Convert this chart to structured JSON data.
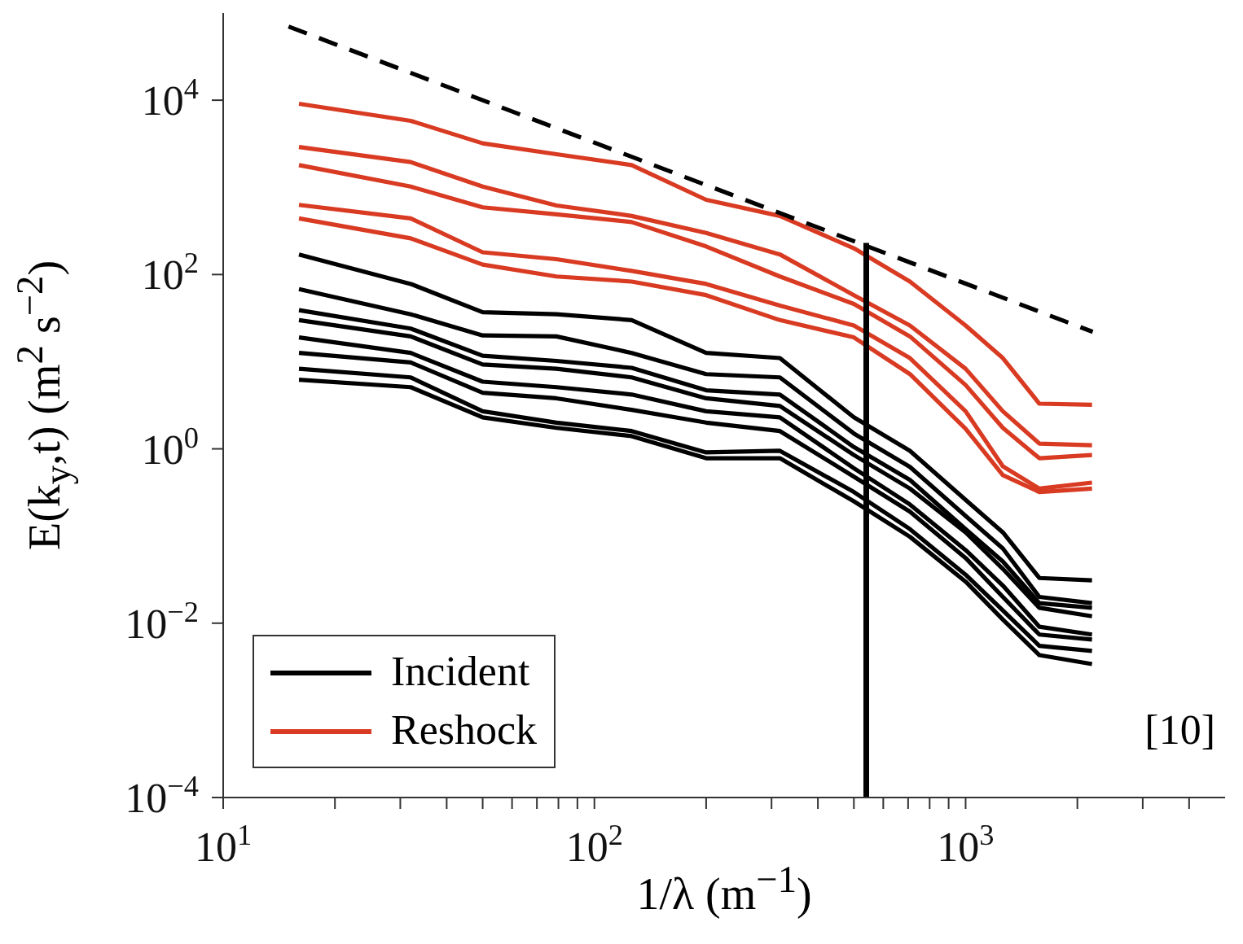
{
  "chart_data": {
    "type": "line",
    "log": "xy",
    "marker": "none",
    "legend": "bottom left",
    "xlabel": "1/λ (m$^{−1}$)",
    "ylabel": "E(k$_{y}$,t) (m$^{2}$ s$^{−2}$)",
    "xlim": [
      10,
      5000
    ],
    "ylim": [
      0.0001,
      100000
    ],
    "xticks": [
      {
        "value": 10,
        "label": "10$^{1}$"
      },
      {
        "value": 20,
        "label": null
      },
      {
        "value": 30,
        "label": null
      },
      {
        "value": 40,
        "label": null
      },
      {
        "value": 50,
        "label": null
      },
      {
        "value": 60,
        "label": null
      },
      {
        "value": 70,
        "label": null
      },
      {
        "value": 80,
        "label": null
      },
      {
        "value": 90,
        "label": null
      },
      {
        "value": 100,
        "label": "10$^{2}$"
      },
      {
        "value": 200,
        "label": null
      },
      {
        "value": 300,
        "label": null
      },
      {
        "value": 400,
        "label": null
      },
      {
        "value": 500,
        "label": null
      },
      {
        "value": 600,
        "label": null
      },
      {
        "value": 700,
        "label": null
      },
      {
        "value": 800,
        "label": null
      },
      {
        "value": 900,
        "label": null
      },
      {
        "value": 1000,
        "label": "10$^{3}$"
      },
      {
        "value": 2000,
        "label": null
      },
      {
        "value": 3000,
        "label": null
      },
      {
        "value": 4000,
        "label": null
      }
    ],
    "yticks": [
      {
        "value": 0.0001,
        "label": "10$^{−4}$"
      },
      {
        "value": 0.01,
        "label": "10$^{−2}$"
      },
      {
        "value": 1,
        "label": "10$^{0}$"
      },
      {
        "value": 100,
        "label": "10$^{2}$"
      },
      {
        "value": 10000,
        "label": "10$^{4}$"
      }
    ],
    "annotations": [
      "[10]"
    ],
    "series": [
      {
        "color": "#000000",
        "x": [
          16,
          32,
          50,
          79,
          126,
          200,
          316,
          500,
          708,
          1000,
          1260,
          1580,
          2190
        ],
        "values": [
          170,
          78,
          37,
          35,
          30,
          12.6,
          11,
          2.3,
          0.95,
          0.26,
          0.11,
          0.033,
          0.031
        ]
      },
      {
        "color": "#000000",
        "x": [
          16,
          32,
          50,
          79,
          126,
          200,
          316,
          500,
          708,
          1000,
          1260,
          1580,
          2190
        ],
        "values": [
          68,
          35,
          20,
          19.5,
          12.6,
          7.2,
          6.6,
          1.5,
          0.62,
          0.17,
          0.072,
          0.02,
          0.017
        ]
      },
      {
        "color": "#000000",
        "x": [
          16,
          32,
          50,
          79,
          126,
          200,
          316,
          500,
          708,
          1000,
          1260,
          1580,
          2190
        ],
        "values": [
          39,
          24,
          11.7,
          10.2,
          8.5,
          4.7,
          4.2,
          1.05,
          0.44,
          0.12,
          0.051,
          0.017,
          0.015
        ]
      },
      {
        "color": "#000000",
        "x": [
          16,
          32,
          50,
          79,
          126,
          200,
          316,
          500,
          708,
          1000,
          1260,
          1580,
          2190
        ],
        "values": [
          30,
          19.5,
          9.3,
          8.3,
          6.6,
          3.8,
          3.1,
          0.85,
          0.35,
          0.11,
          0.042,
          0.015,
          0.012
        ]
      },
      {
        "color": "#000000",
        "x": [
          16,
          32,
          50,
          79,
          126,
          200,
          316,
          500,
          708,
          1000,
          1260,
          1580,
          2190
        ],
        "values": [
          19,
          12.6,
          5.9,
          5.1,
          4.2,
          2.7,
          2.3,
          0.6,
          0.23,
          0.069,
          0.027,
          0.0091,
          0.0074
        ]
      },
      {
        "color": "#000000",
        "x": [
          16,
          32,
          50,
          79,
          126,
          200,
          316,
          500,
          708,
          1000,
          1260,
          1580,
          2190
        ],
        "values": [
          12.6,
          9.8,
          4.4,
          3.8,
          2.8,
          2.0,
          1.6,
          0.48,
          0.19,
          0.056,
          0.02,
          0.0074,
          0.0065
        ]
      },
      {
        "color": "#000000",
        "x": [
          16,
          32,
          50,
          79,
          126,
          200,
          316,
          500,
          708,
          1000,
          1260,
          1580,
          2190
        ],
        "values": [
          8.3,
          6.6,
          2.7,
          2.0,
          1.6,
          0.91,
          0.95,
          0.32,
          0.12,
          0.036,
          0.014,
          0.0055,
          0.0048
        ]
      },
      {
        "name": "Incident",
        "color": "#000000",
        "x": [
          16,
          32,
          50,
          79,
          126,
          200,
          316,
          500,
          708,
          1000,
          1260,
          1580,
          2190
        ],
        "values": [
          6.2,
          5.1,
          2.3,
          1.74,
          1.4,
          0.78,
          0.78,
          0.25,
          0.098,
          0.03,
          0.011,
          0.0043,
          0.0034
        ]
      },
      {
        "name": "Reshock",
        "color": "#d93a22",
        "x": [
          16,
          32,
          50,
          79,
          126,
          200,
          316,
          500,
          708,
          1000,
          1260,
          1580,
          2190
        ],
        "values": [
          9100,
          5800,
          3200,
          2400,
          1800,
          720,
          470,
          200,
          83,
          26,
          11,
          3.3,
          3.2
        ]
      },
      {
        "color": "#d93a22",
        "x": [
          16,
          32,
          50,
          79,
          126,
          200,
          316,
          500,
          708,
          1000,
          1260,
          1580,
          2190
        ],
        "values": [
          2900,
          1950,
          1020,
          620,
          470,
          300,
          170,
          58,
          26,
          8.3,
          2.7,
          1.15,
          1.1
        ]
      },
      {
        "color": "#d93a22",
        "x": [
          16,
          32,
          50,
          79,
          126,
          200,
          316,
          500,
          708,
          1000,
          1260,
          1580,
          2190
        ],
        "values": [
          1800,
          1020,
          590,
          490,
          400,
          210,
          95,
          46,
          19.5,
          5.4,
          1.74,
          0.78,
          0.85
        ]
      },
      {
        "color": "#d93a22",
        "x": [
          16,
          32,
          50,
          79,
          126,
          200,
          316,
          500,
          708,
          1000,
          1260,
          1580,
          2190
        ],
        "values": [
          630,
          440,
          180,
          150,
          110,
          78,
          44,
          26,
          11,
          2.7,
          0.63,
          0.35,
          0.41
        ]
      },
      {
        "color": "#d93a22",
        "x": [
          16,
          32,
          50,
          79,
          126,
          200,
          316,
          500,
          708,
          1000,
          1260,
          1580,
          2190
        ],
        "values": [
          440,
          260,
          130,
          95,
          83,
          58,
          30,
          19,
          7.2,
          1.7,
          0.5,
          0.32,
          0.35
        ]
      },
      {
        "color": "#000000",
        "line_style": "dashed",
        "x": [
          15,
          2200
        ],
        "values": [
          70000,
          22
        ]
      },
      {
        "color": "#000000",
        "x": [
          540,
          540
        ],
        "values": [
          0.0001,
          230
        ]
      }
    ]
  }
}
